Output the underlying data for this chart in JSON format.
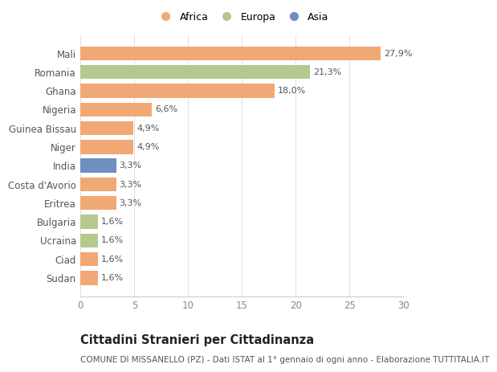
{
  "countries": [
    "Mali",
    "Romania",
    "Ghana",
    "Nigeria",
    "Guinea Bissau",
    "Niger",
    "India",
    "Costa d'Avorio",
    "Eritrea",
    "Bulgaria",
    "Ucraina",
    "Ciad",
    "Sudan"
  ],
  "values": [
    27.9,
    21.3,
    18.0,
    6.6,
    4.9,
    4.9,
    3.3,
    3.3,
    3.3,
    1.6,
    1.6,
    1.6,
    1.6
  ],
  "labels": [
    "27,9%",
    "21,3%",
    "18,0%",
    "6,6%",
    "4,9%",
    "4,9%",
    "3,3%",
    "3,3%",
    "3,3%",
    "1,6%",
    "1,6%",
    "1,6%",
    "1,6%"
  ],
  "continents": [
    "Africa",
    "Europa",
    "Africa",
    "Africa",
    "Africa",
    "Africa",
    "Asia",
    "Africa",
    "Africa",
    "Europa",
    "Europa",
    "Africa",
    "Africa"
  ],
  "colors": {
    "Africa": "#F0A875",
    "Europa": "#B5C98E",
    "Asia": "#6E8FC0"
  },
  "legend_order": [
    "Africa",
    "Europa",
    "Asia"
  ],
  "title": "Cittadini Stranieri per Cittadinanza",
  "subtitle": "COMUNE DI MISSANELLO (PZ) - Dati ISTAT al 1° gennaio di ogni anno - Elaborazione TUTTITALIA.IT",
  "xlim": [
    0,
    30
  ],
  "xticks": [
    0,
    5,
    10,
    15,
    20,
    25,
    30
  ],
  "background_color": "#ffffff",
  "bar_height": 0.75,
  "label_fontsize": 8.0,
  "ytick_fontsize": 8.5,
  "xtick_fontsize": 8.5,
  "title_fontsize": 10.5,
  "subtitle_fontsize": 7.5
}
